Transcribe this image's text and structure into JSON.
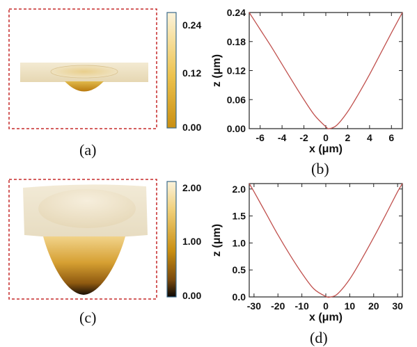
{
  "captions": [
    "(a)",
    "(b)",
    "(c)",
    "(d)"
  ],
  "colorbars": [
    {
      "ticks": [
        "0.24",
        "0.12",
        "0.00"
      ]
    },
    {
      "ticks": [
        "2.00",
        "1.00",
        "0.00"
      ]
    }
  ],
  "chart_data": [
    {
      "type": "line",
      "panel": "(b)",
      "xlabel": "x (μm)",
      "ylabel": "z (μm)",
      "xlim": [
        -7,
        7
      ],
      "ylim": [
        0,
        0.24
      ],
      "xticks": [
        -6,
        -4,
        -2,
        0,
        2,
        4,
        6
      ],
      "yticks": [
        0.0,
        0.06,
        0.12,
        0.18,
        0.24
      ],
      "ytick_labels": [
        "0.00",
        "0.06",
        "0.12",
        "0.18",
        "0.24"
      ],
      "xtick_labels": [
        "-6",
        "-4",
        "-2",
        "0",
        "2",
        "4",
        "6"
      ],
      "line_color": "#c0504d",
      "x": [
        -7,
        -6,
        -5,
        -4,
        -3,
        -2,
        -1,
        0,
        0.3,
        1,
        2,
        3,
        4,
        5,
        6,
        7
      ],
      "y": [
        0.24,
        0.205,
        0.17,
        0.133,
        0.096,
        0.06,
        0.027,
        0.004,
        0.0,
        0.007,
        0.035,
        0.072,
        0.112,
        0.155,
        0.198,
        0.24
      ]
    },
    {
      "type": "line",
      "panel": "(d)",
      "xlabel": "x (μm)",
      "ylabel": "z (μm)",
      "xlim": [
        -32,
        32
      ],
      "ylim": [
        0,
        2.1
      ],
      "xticks": [
        -30,
        -20,
        -10,
        0,
        10,
        20,
        30
      ],
      "yticks": [
        0.0,
        0.5,
        1.0,
        1.5,
        2.0
      ],
      "ytick_labels": [
        "0.0",
        "0.5",
        "1.0",
        "1.5",
        "2.0"
      ],
      "xtick_labels": [
        "-30",
        "-20",
        "-10",
        "0",
        "10",
        "20",
        "30"
      ],
      "line_color": "#c0504d",
      "x": [
        -32,
        -30,
        -25,
        -20,
        -15,
        -10,
        -5,
        0,
        2,
        5,
        10,
        15,
        20,
        25,
        30,
        32
      ],
      "y": [
        2.1,
        1.95,
        1.55,
        1.15,
        0.78,
        0.44,
        0.15,
        0.01,
        0.0,
        0.06,
        0.33,
        0.7,
        1.1,
        1.52,
        1.95,
        2.1
      ]
    }
  ]
}
